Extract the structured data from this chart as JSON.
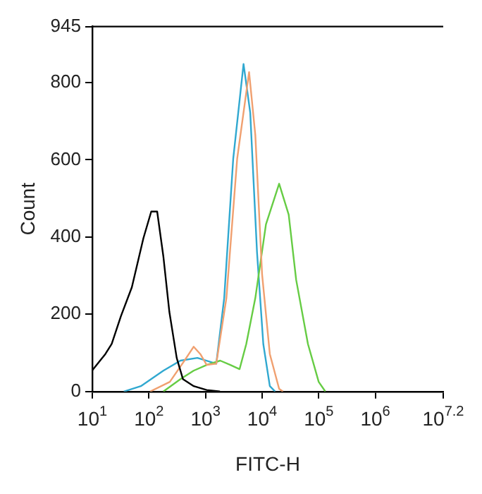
{
  "chart_data": {
    "type": "line",
    "xlabel": "FITC-H",
    "ylabel": "Count",
    "log": "x",
    "grid": false,
    "legend": false,
    "marker": "none",
    "line_style": "solid",
    "xlim": [
      10,
      15848932
    ],
    "xticks": [
      {
        "value": 10,
        "label": "10$^{1}$"
      },
      {
        "value": 100,
        "label": "10$^{2}$"
      },
      {
        "value": 1000,
        "label": "10$^{3}$"
      },
      {
        "value": 10000,
        "label": "10$^{4}$"
      },
      {
        "value": 100000,
        "label": "10$^{5}$"
      },
      {
        "value": 1000000,
        "label": "10$^{6}$"
      },
      {
        "value": 15848932,
        "label": "10$^{7.2}$"
      }
    ],
    "ylim": [
      0,
      945
    ],
    "yticks": [
      0,
      200,
      400,
      600,
      800,
      945
    ],
    "series": [
      {
        "color": "#000000",
        "x": [
          10,
          17,
          22,
          32,
          50,
          80,
          110,
          140,
          180,
          230,
          310,
          400,
          620,
          1050,
          1800
        ],
        "values": [
          55,
          97,
          123,
          195,
          270,
          397,
          466,
          466,
          350,
          206,
          87,
          32,
          14,
          4,
          0
        ]
      },
      {
        "color": "#f0a070",
        "x": [
          105,
          234,
          425,
          617,
          810,
          1050,
          1550,
          2340,
          3630,
          5890,
          7590,
          10000,
          13700,
          20000,
          23400
        ],
        "values": [
          0,
          25,
          80,
          116,
          97,
          69,
          72,
          242,
          603,
          827,
          664,
          303,
          97,
          7,
          0
        ]
      },
      {
        "color": "#66cc44",
        "x": [
          180,
          360,
          617,
          1050,
          1820,
          2750,
          4000,
          5250,
          7590,
          11700,
          20000,
          29500,
          40000,
          64600,
          100000,
          131000
        ],
        "values": [
          0,
          32,
          54,
          69,
          80,
          69,
          58,
          123,
          242,
          433,
          538,
          458,
          289,
          123,
          25,
          0
        ]
      },
      {
        "color": "#30a8d0",
        "x": [
          36,
          72,
          180,
          360,
          720,
          1550,
          2140,
          3090,
          4700,
          6170,
          8130,
          10500,
          13700,
          17000
        ],
        "values": [
          0,
          14,
          54,
          80,
          87,
          72,
          242,
          603,
          848,
          722,
          361,
          123,
          14,
          0
        ]
      }
    ]
  }
}
